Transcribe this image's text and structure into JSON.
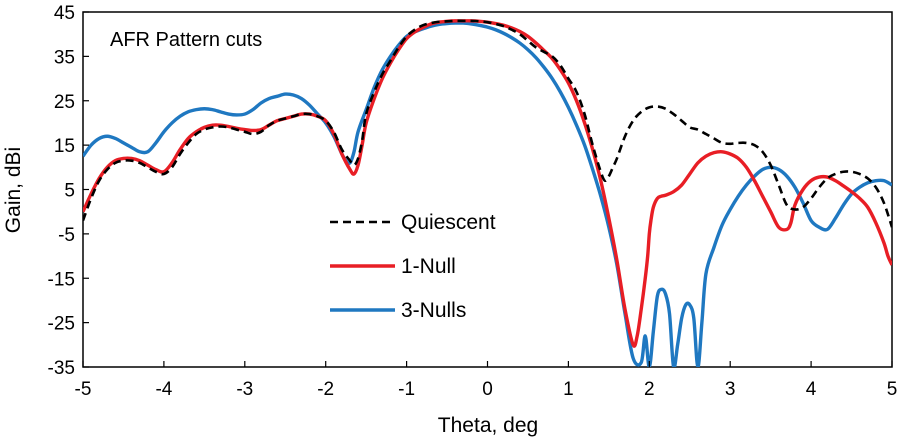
{
  "chart_data": {
    "type": "line",
    "annotation": "AFR Pattern cuts",
    "xlabel": "Theta, deg",
    "ylabel": "Gain, dBi",
    "xlim": [
      -5,
      5
    ],
    "ylim": [
      -35,
      45
    ],
    "xticks": [
      -5,
      -4,
      -3,
      -2,
      -1,
      0,
      1,
      2,
      3,
      4,
      5
    ],
    "yticks": [
      45,
      35,
      25,
      15,
      5,
      -5,
      -15,
      -25,
      -35
    ],
    "grid": false,
    "legend_position": "center-left",
    "series": [
      {
        "name": "Quiescent",
        "color": "#000000",
        "dash": "dashed",
        "x": [
          -5,
          -4.9,
          -4.8,
          -4.7,
          -4.6,
          -4.5,
          -4.4,
          -4.3,
          -4.2,
          -4.1,
          -4,
          -3.9,
          -3.8,
          -3.7,
          -3.6,
          -3.5,
          -3.4,
          -3.3,
          -3.2,
          -3.1,
          -3,
          -2.9,
          -2.8,
          -2.7,
          -2.6,
          -2.5,
          -2.4,
          -2.3,
          -2.2,
          -2.1,
          -2,
          -1.9,
          -1.8,
          -1.7,
          -1.65,
          -1.6,
          -1.55,
          -1.5,
          -1.4,
          -1.3,
          -1.2,
          -1.1,
          -1,
          -0.9,
          -0.8,
          -0.7,
          -0.6,
          -0.5,
          -0.4,
          -0.3,
          -0.2,
          -0.1,
          0,
          0.1,
          0.2,
          0.3,
          0.4,
          0.5,
          0.6,
          0.7,
          0.8,
          0.9,
          1,
          1.1,
          1.2,
          1.3,
          1.4,
          1.45,
          1.5,
          1.55,
          1.6,
          1.7,
          1.8,
          1.9,
          2,
          2.1,
          2.2,
          2.3,
          2.4,
          2.5,
          2.6,
          2.7,
          2.8,
          2.9,
          3,
          3.1,
          3.2,
          3.3,
          3.4,
          3.5,
          3.6,
          3.7,
          3.8,
          3.9,
          4,
          4.1,
          4.2,
          4.3,
          4.4,
          4.5,
          4.6,
          4.7,
          4.8,
          4.9,
          5
        ],
        "y": [
          -2,
          3,
          7,
          9.5,
          11,
          11.5,
          11.5,
          11,
          10,
          9,
          8.5,
          10,
          13,
          15.5,
          17.5,
          18.5,
          19,
          19.2,
          19,
          18.5,
          18,
          17.5,
          18,
          19.5,
          20.5,
          21,
          21.5,
          22,
          22,
          21.5,
          20.5,
          18,
          14,
          11.5,
          10.5,
          12,
          16,
          22,
          27,
          31,
          34,
          37,
          39.5,
          41,
          42,
          42.5,
          42.8,
          42.9,
          43,
          43,
          43,
          42.9,
          42.7,
          42.3,
          41.8,
          41,
          40,
          38.5,
          37,
          36,
          35,
          33,
          30,
          27,
          22,
          15,
          9,
          7,
          8,
          10,
          12,
          17,
          20.5,
          22.5,
          23.5,
          23.7,
          23.2,
          22,
          20.5,
          19,
          18.5,
          17.5,
          16.5,
          15.5,
          15.3,
          15.5,
          15.5,
          15,
          13.5,
          10.5,
          6,
          1.5,
          0.5,
          1,
          3,
          5.5,
          7.5,
          8.5,
          9,
          9,
          8.5,
          7.5,
          5.5,
          2,
          -3.5
        ]
      },
      {
        "name": "1-Null",
        "color": "#e81e25",
        "dash": "solid",
        "x": [
          -5,
          -4.9,
          -4.8,
          -4.7,
          -4.6,
          -4.5,
          -4.4,
          -4.3,
          -4.2,
          -4.1,
          -4,
          -3.9,
          -3.8,
          -3.7,
          -3.6,
          -3.5,
          -3.4,
          -3.3,
          -3.2,
          -3.1,
          -3,
          -2.9,
          -2.8,
          -2.7,
          -2.6,
          -2.5,
          -2.4,
          -2.3,
          -2.2,
          -2.1,
          -2,
          -1.9,
          -1.8,
          -1.7,
          -1.65,
          -1.6,
          -1.55,
          -1.5,
          -1.4,
          -1.3,
          -1.2,
          -1.1,
          -1,
          -0.9,
          -0.8,
          -0.7,
          -0.6,
          -0.5,
          -0.4,
          -0.3,
          -0.2,
          -0.1,
          0,
          0.1,
          0.2,
          0.3,
          0.4,
          0.5,
          0.6,
          0.7,
          0.8,
          0.9,
          1,
          1.1,
          1.2,
          1.3,
          1.4,
          1.5,
          1.6,
          1.7,
          1.8,
          1.85,
          1.9,
          1.95,
          1.98,
          2,
          2.02,
          2.05,
          2.1,
          2.15,
          2.2,
          2.3,
          2.4,
          2.5,
          2.6,
          2.7,
          2.8,
          2.9,
          3,
          3.1,
          3.2,
          3.3,
          3.4,
          3.5,
          3.6,
          3.7,
          3.75,
          3.8,
          3.9,
          4,
          4.1,
          4.2,
          4.3,
          4.4,
          4.5,
          4.6,
          4.7,
          4.8,
          4.9,
          4.95,
          5
        ],
        "y": [
          0,
          4,
          7.5,
          10,
          11.5,
          12,
          12,
          11.5,
          10.5,
          9.5,
          9,
          11,
          14,
          16.5,
          18,
          19,
          19.5,
          19.5,
          19.2,
          18.8,
          18.5,
          18.3,
          18.5,
          19.5,
          20.5,
          21,
          21.5,
          22,
          22,
          21.5,
          20.5,
          17.5,
          13,
          9.5,
          8.5,
          10.5,
          15,
          20,
          25.5,
          30,
          33.5,
          36.5,
          39,
          40.5,
          41.5,
          42.3,
          42.7,
          42.9,
          43,
          43,
          43,
          42.9,
          42.7,
          42.4,
          42,
          41.4,
          40.6,
          39.5,
          38,
          36.3,
          34.5,
          32,
          29,
          25,
          20,
          14,
          7,
          -1.5,
          -11,
          -22,
          -30,
          -28,
          -22,
          -15,
          -10,
          -5,
          -2,
          1,
          3,
          3.5,
          3.7,
          4.5,
          6,
          8.5,
          11,
          12.5,
          13.3,
          13.5,
          13,
          12,
          10,
          7,
          3.5,
          0,
          -3.5,
          -4,
          -2.5,
          1.5,
          5,
          7,
          7.8,
          7.8,
          7,
          5.8,
          4.5,
          3,
          1,
          -2.5,
          -7,
          -10,
          -12
        ]
      },
      {
        "name": "3-Nulls",
        "color": "#1f78c1",
        "dash": "solid",
        "x": [
          -5,
          -4.9,
          -4.8,
          -4.7,
          -4.6,
          -4.5,
          -4.4,
          -4.3,
          -4.2,
          -4.1,
          -4,
          -3.9,
          -3.8,
          -3.7,
          -3.6,
          -3.5,
          -3.4,
          -3.3,
          -3.2,
          -3.1,
          -3,
          -2.9,
          -2.8,
          -2.7,
          -2.6,
          -2.5,
          -2.4,
          -2.3,
          -2.2,
          -2.1,
          -2,
          -1.9,
          -1.8,
          -1.75,
          -1.7,
          -1.65,
          -1.6,
          -1.5,
          -1.4,
          -1.3,
          -1.2,
          -1.1,
          -1,
          -0.9,
          -0.8,
          -0.7,
          -0.6,
          -0.5,
          -0.4,
          -0.3,
          -0.2,
          -0.1,
          0,
          0.1,
          0.2,
          0.3,
          0.4,
          0.5,
          0.6,
          0.7,
          0.8,
          0.9,
          1,
          1.1,
          1.2,
          1.3,
          1.4,
          1.5,
          1.6,
          1.7,
          1.8,
          1.9,
          1.95,
          2,
          2.05,
          2.1,
          2.15,
          2.2,
          2.25,
          2.3,
          2.35,
          2.4,
          2.45,
          2.5,
          2.55,
          2.6,
          2.65,
          2.7,
          2.8,
          2.9,
          3,
          3.1,
          3.2,
          3.3,
          3.4,
          3.5,
          3.6,
          3.7,
          3.8,
          3.9,
          4,
          4.1,
          4.2,
          4.3,
          4.4,
          4.5,
          4.6,
          4.7,
          4.8,
          4.9,
          5
        ],
        "y": [
          12.5,
          15,
          16.5,
          17,
          16.5,
          15.5,
          14.5,
          13.5,
          13.5,
          15.5,
          18,
          20,
          21.5,
          22.5,
          23,
          23.2,
          23,
          22.5,
          22,
          21.8,
          22,
          23,
          24.5,
          25.5,
          26,
          26.5,
          26.3,
          25.5,
          24,
          22,
          20,
          17,
          13,
          11.5,
          11,
          13.5,
          18,
          23,
          28,
          32,
          35,
          37.5,
          39.5,
          40.5,
          41.2,
          41.8,
          42.2,
          42.4,
          42.5,
          42.5,
          42.3,
          42,
          41.6,
          41,
          40.2,
          39.2,
          38,
          36.5,
          34.7,
          32.5,
          30,
          27,
          23.5,
          19.5,
          15,
          9.5,
          3.5,
          -3.5,
          -12,
          -23,
          -33,
          -34,
          -28,
          -35,
          -27,
          -19,
          -17.5,
          -18.5,
          -23,
          -35,
          -30,
          -24,
          -21,
          -21,
          -24,
          -35,
          -25,
          -14,
          -8,
          -3,
          0.5,
          3.5,
          6,
          8,
          9.5,
          10,
          9.5,
          8,
          5.5,
          2,
          -2,
          -3.5,
          -4,
          -1.5,
          1.5,
          4,
          5.5,
          6.5,
          7,
          7,
          6
        ]
      }
    ]
  }
}
